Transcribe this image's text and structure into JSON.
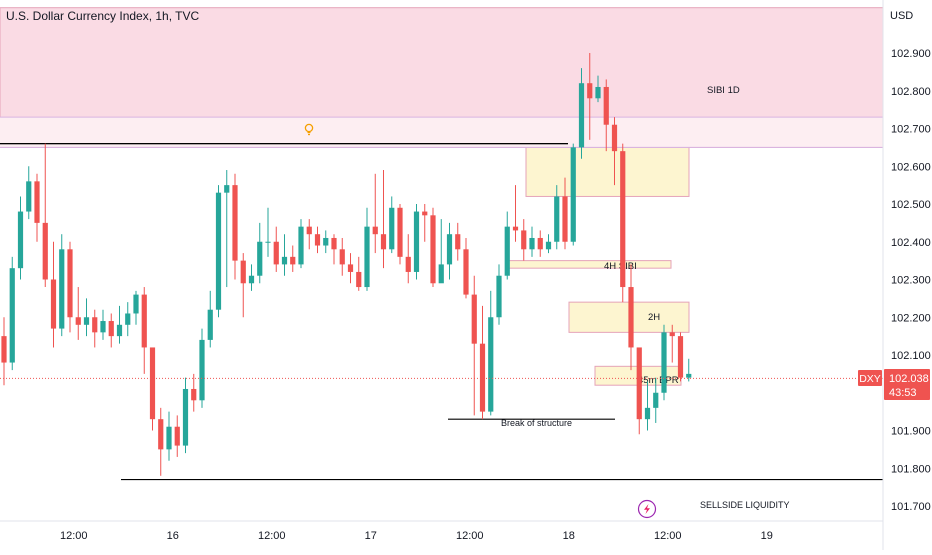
{
  "chart_title": "U.S. Dollar Currency Index, 1h, TVC",
  "currency": "USD",
  "chart_data": {
    "type": "candlestick",
    "symbol": "DXY",
    "last_price": "102.038",
    "countdown": "43:53",
    "y_range": [
      101.65,
      103.02
    ],
    "y_ticks": [
      "102.900",
      "102.800",
      "102.700",
      "102.600",
      "102.500",
      "102.400",
      "102.300",
      "102.200",
      "102.100",
      "101.900",
      "101.800",
      "101.700"
    ],
    "x_labels": [
      {
        "label": "12:00",
        "i": 7
      },
      {
        "label": "16",
        "i": 19
      },
      {
        "label": "12:00",
        "i": 31
      },
      {
        "label": "17",
        "i": 43
      },
      {
        "label": "12:00",
        "i": 55
      },
      {
        "label": "18",
        "i": 67
      },
      {
        "label": "12:00",
        "i": 79
      },
      {
        "label": "19",
        "i": 91
      }
    ],
    "up_color": "#26a69a",
    "down_color": "#ef5350",
    "candles": [
      [
        102.15,
        102.08,
        102.2,
        102.02
      ],
      [
        102.08,
        102.33,
        102.36,
        102.06
      ],
      [
        102.33,
        102.48,
        102.52,
        102.3
      ],
      [
        102.48,
        102.56,
        102.6,
        102.46
      ],
      [
        102.56,
        102.45,
        102.58,
        102.4
      ],
      [
        102.45,
        102.3,
        102.66,
        102.28
      ],
      [
        102.3,
        102.17,
        102.4,
        102.12
      ],
      [
        102.17,
        102.38,
        102.42,
        102.15
      ],
      [
        102.38,
        102.2,
        102.4,
        102.16
      ],
      [
        102.2,
        102.18,
        102.28,
        102.14
      ],
      [
        102.18,
        102.2,
        102.25,
        102.15
      ],
      [
        102.2,
        102.16,
        102.22,
        102.12
      ],
      [
        102.16,
        102.19,
        102.22,
        102.14
      ],
      [
        102.19,
        102.15,
        102.21,
        102.12
      ],
      [
        102.15,
        102.18,
        102.23,
        102.13
      ],
      [
        102.18,
        102.21,
        102.24,
        102.15
      ],
      [
        102.21,
        102.26,
        102.27,
        102.18
      ],
      [
        102.26,
        102.12,
        102.28,
        102.05
      ],
      [
        102.12,
        101.93,
        102.1,
        101.9
      ],
      [
        101.93,
        101.85,
        101.96,
        101.78
      ],
      [
        101.85,
        101.91,
        101.95,
        101.82
      ],
      [
        101.91,
        101.86,
        101.94,
        101.83
      ],
      [
        101.86,
        102.01,
        102.04,
        101.84
      ],
      [
        102.01,
        101.98,
        102.05,
        101.95
      ],
      [
        101.98,
        102.14,
        102.17,
        101.96
      ],
      [
        102.14,
        102.22,
        102.27,
        102.12
      ],
      [
        102.22,
        102.53,
        102.55,
        102.2
      ],
      [
        102.53,
        102.55,
        102.59,
        102.28
      ],
      [
        102.55,
        102.35,
        102.58,
        102.3
      ],
      [
        102.35,
        102.29,
        102.37,
        102.2
      ],
      [
        102.29,
        102.31,
        102.34,
        102.27
      ],
      [
        102.31,
        102.4,
        102.45,
        102.29
      ],
      [
        102.4,
        102.4,
        102.49,
        102.36
      ],
      [
        102.4,
        102.34,
        102.44,
        102.32
      ],
      [
        102.34,
        102.36,
        102.42,
        102.31
      ],
      [
        102.36,
        102.34,
        102.39,
        102.32
      ],
      [
        102.34,
        102.44,
        102.46,
        102.33
      ],
      [
        102.44,
        102.42,
        102.46,
        102.38
      ],
      [
        102.42,
        102.39,
        102.44,
        102.37
      ],
      [
        102.39,
        102.41,
        102.43,
        102.37
      ],
      [
        102.41,
        102.38,
        102.42,
        102.34
      ],
      [
        102.38,
        102.34,
        102.41,
        102.31
      ],
      [
        102.34,
        102.32,
        102.37,
        102.29
      ],
      [
        102.32,
        102.28,
        102.36,
        102.27
      ],
      [
        102.28,
        102.44,
        102.49,
        102.27
      ],
      [
        102.44,
        102.42,
        102.58,
        102.37
      ],
      [
        102.42,
        102.38,
        102.59,
        102.33
      ],
      [
        102.38,
        102.49,
        102.52,
        102.37
      ],
      [
        102.49,
        102.36,
        102.5,
        102.34
      ],
      [
        102.36,
        102.32,
        102.42,
        102.29
      ],
      [
        102.32,
        102.48,
        102.5,
        102.3
      ],
      [
        102.48,
        102.47,
        102.5,
        102.4
      ],
      [
        102.47,
        102.29,
        102.49,
        102.28
      ],
      [
        102.29,
        102.34,
        102.46,
        102.31
      ],
      [
        102.34,
        102.42,
        102.45,
        102.3
      ],
      [
        102.42,
        102.38,
        102.45,
        102.35
      ],
      [
        102.38,
        102.26,
        102.41,
        102.25
      ],
      [
        102.26,
        102.13,
        102.31,
        101.94
      ],
      [
        102.13,
        101.95,
        102.23,
        101.93
      ],
      [
        101.95,
        102.2,
        102.27,
        101.94
      ],
      [
        102.2,
        102.31,
        102.34,
        102.18
      ],
      [
        102.31,
        102.44,
        102.48,
        102.3
      ],
      [
        102.44,
        102.43,
        102.55,
        102.4
      ],
      [
        102.43,
        102.38,
        102.46,
        102.35
      ],
      [
        102.38,
        102.41,
        102.44,
        102.36
      ],
      [
        102.41,
        102.38,
        102.43,
        102.36
      ],
      [
        102.38,
        102.4,
        102.42,
        102.37
      ],
      [
        102.4,
        102.52,
        102.55,
        102.38
      ],
      [
        102.52,
        102.4,
        102.57,
        102.38
      ],
      [
        102.4,
        102.65,
        102.66,
        102.39
      ],
      [
        102.65,
        102.82,
        102.86,
        102.62
      ],
      [
        102.82,
        102.78,
        102.9,
        102.67
      ],
      [
        102.78,
        102.81,
        102.84,
        102.77
      ],
      [
        102.81,
        102.71,
        102.83,
        102.64
      ],
      [
        102.71,
        102.64,
        102.73,
        102.55
      ],
      [
        102.64,
        102.28,
        102.66,
        102.24
      ],
      [
        102.28,
        102.12,
        102.34,
        102.06
      ],
      [
        102.12,
        101.93,
        102.08,
        101.89
      ],
      [
        101.93,
        101.96,
        102.03,
        101.9
      ],
      [
        101.96,
        102.0,
        102.04,
        101.92
      ],
      [
        102.0,
        102.16,
        102.18,
        101.98
      ],
      [
        102.16,
        102.15,
        102.18,
        102.08
      ],
      [
        102.15,
        102.04,
        102.16,
        102.03
      ],
      [
        102.04,
        102.05,
        102.09,
        102.03
      ]
    ],
    "zones": [
      {
        "label": "SIBI 1D",
        "y1": 102.65,
        "y2": 103.02,
        "fill": "#fadbe4",
        "line": "#e5a3b8"
      },
      {
        "label": "",
        "y1": 102.52,
        "y2": 102.65,
        "fill": "#fdf5d0",
        "line": "#e5a3b8"
      },
      {
        "label": "4H SIBI",
        "y1": 102.33,
        "y2": 102.35,
        "fill": "#fdf5d0",
        "line": "#e5a3b8"
      },
      {
        "label": "2H",
        "y1": 102.16,
        "y2": 102.24,
        "fill": "#fdf5d0",
        "line": "#e5a3b8"
      },
      {
        "label": "45m BPR",
        "y1": 102.02,
        "y2": 102.07,
        "fill": "#fdf5d0",
        "line": "#e5a3b8"
      }
    ],
    "levels": [
      {
        "label": "",
        "y": 102.66,
        "color": "#000000"
      },
      {
        "label": "Break of structure",
        "y": 101.93,
        "color": "#000000"
      },
      {
        "label": "SELLSIDE LIQUIDITY",
        "y": 101.77,
        "color": "#000000"
      }
    ],
    "line_label": "102.038"
  }
}
